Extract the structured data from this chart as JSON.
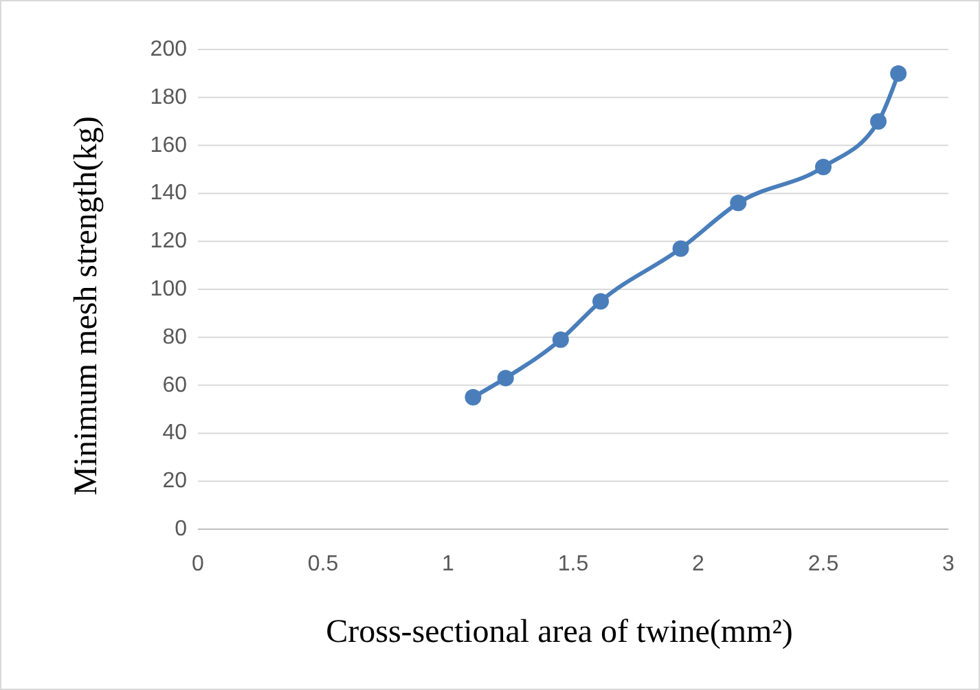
{
  "chart_data": {
    "type": "line",
    "xlabel": "Cross-sectional area of twine(mm²)",
    "ylabel": "Minimum mesh strength(kg)",
    "x": [
      1.1,
      1.23,
      1.45,
      1.61,
      1.93,
      2.16,
      2.5,
      2.72,
      2.8
    ],
    "series": [
      {
        "color": "#4a7ebb",
        "values": [
          55,
          63,
          79,
          95,
          117,
          136,
          151,
          170,
          190
        ]
      }
    ],
    "xlim": [
      0,
      3
    ],
    "xticks": [
      0,
      0.5,
      1,
      1.5,
      2,
      2.5,
      3
    ],
    "ylim": [
      0,
      200
    ],
    "yticks": [
      0,
      20,
      40,
      60,
      80,
      100,
      120,
      140,
      160,
      180,
      200
    ],
    "grid": "y",
    "marker": "circle",
    "line_style": "solid"
  }
}
